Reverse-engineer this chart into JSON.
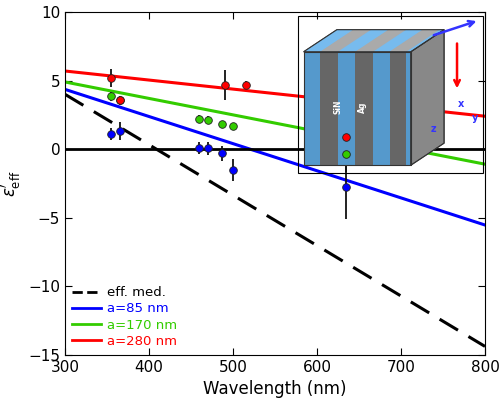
{
  "xlim": [
    300,
    800
  ],
  "ylim": [
    -15,
    10
  ],
  "xlabel": "Wavelength (nm)",
  "bg_color": "#ffffff",
  "line_eff_med": {
    "slope": -0.0368,
    "intercept": 15.04,
    "color": "#000000",
    "linestyle": "dashed",
    "linewidth": 2.2,
    "dashes": [
      7,
      4
    ]
  },
  "line_85nm": {
    "slope": -0.0198,
    "intercept": 10.3,
    "color": "#0000ff",
    "linestyle": "solid",
    "linewidth": 2.2
  },
  "line_170nm": {
    "slope": -0.012,
    "intercept": 8.5,
    "color": "#33cc00",
    "linestyle": "solid",
    "linewidth": 2.2
  },
  "line_280nm": {
    "slope": -0.0066,
    "intercept": 7.68,
    "color": "#ff0000",
    "linestyle": "solid",
    "linewidth": 2.2
  },
  "data_85nm": {
    "color": "#0000ff",
    "x": [
      355,
      365,
      460,
      470,
      487,
      500,
      635
    ],
    "y": [
      1.1,
      1.35,
      0.1,
      0.05,
      -0.3,
      -1.5,
      -2.8
    ],
    "yerr": [
      0.45,
      0.65,
      0.45,
      0.5,
      0.55,
      0.8,
      2.3
    ]
  },
  "data_170nm": {
    "color": "#33cc00",
    "x": [
      355,
      365,
      460,
      470,
      487,
      500,
      635
    ],
    "y": [
      3.85,
      3.6,
      2.2,
      2.15,
      1.8,
      1.7,
      -0.35
    ],
    "yerr": [
      0.35,
      0.25,
      0.3,
      0.25,
      0.2,
      0.22,
      0.6
    ]
  },
  "data_280nm": {
    "color": "#ff0000",
    "x": [
      355,
      365,
      490,
      515,
      635
    ],
    "y": [
      5.2,
      3.55,
      4.65,
      4.7,
      0.85
    ],
    "yerr": [
      0.65,
      0.35,
      1.1,
      0.28,
      2.5
    ]
  },
  "legend_items": [
    {
      "label": "eff. med.",
      "color": "#000000",
      "linestyle": "dashed"
    },
    {
      "label": "a=85 nm",
      "color": "#0000ff",
      "linestyle": "solid"
    },
    {
      "label": "a=170 nm",
      "color": "#33cc00",
      "linestyle": "solid"
    },
    {
      "label": "a=280 nm",
      "color": "#ff0000",
      "linestyle": "solid"
    }
  ],
  "inset": {
    "gray_dark": "#666666",
    "gray_mid": "#888888",
    "gray_light": "#aaaaaa",
    "blue_face": "#5599cc",
    "blue_top": "#77bbee",
    "arrow_blue": "#3333ff",
    "arrow_red": "#ff0000",
    "label_color": "#3333ff"
  },
  "figsize": [
    5.0,
    4.03
  ],
  "dpi": 100
}
